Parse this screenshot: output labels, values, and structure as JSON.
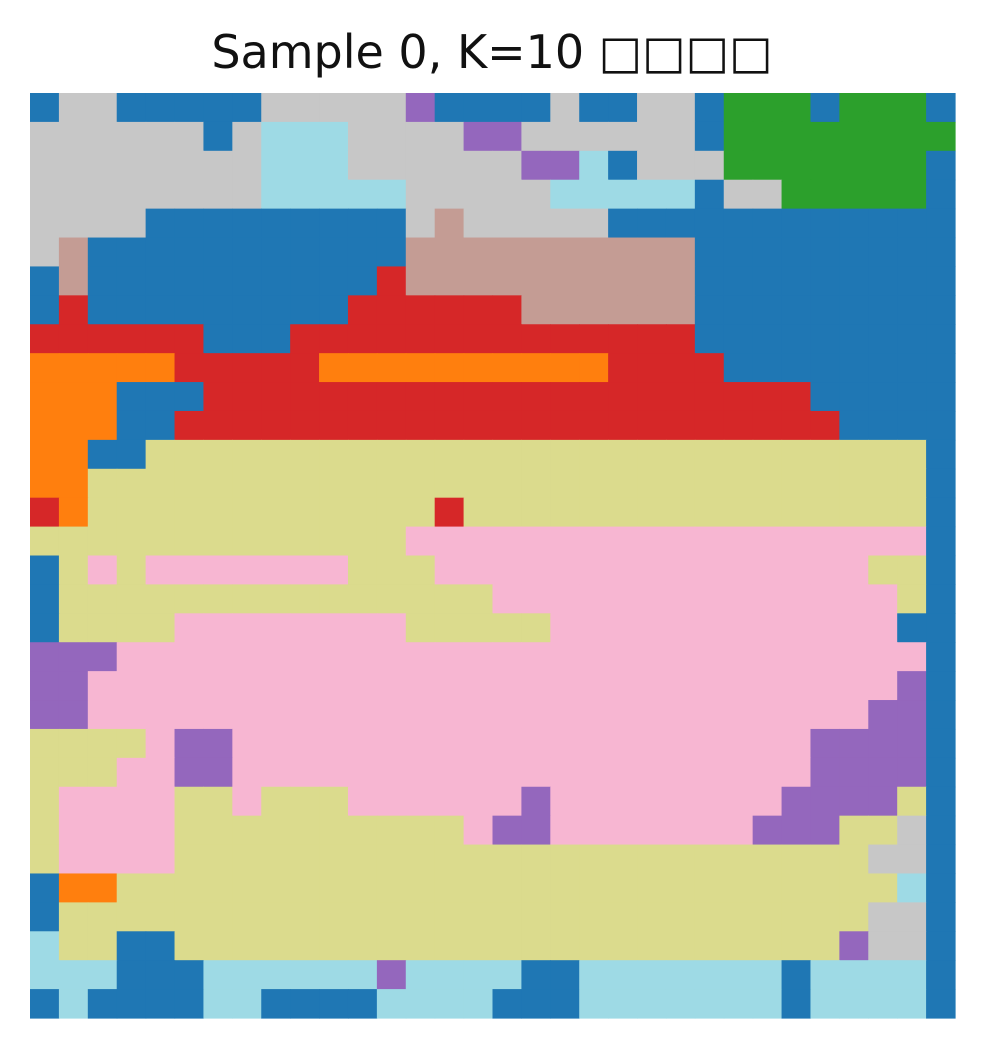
{
  "title": "Sample 0, K=10 □□□□",
  "chart_data": {
    "type": "heatmap",
    "title": "Sample 0, K=10 □□□□",
    "xlabel": "",
    "ylabel": "",
    "axes_visible": false,
    "grid": false,
    "legend": "none",
    "rows": 32,
    "cols": 32,
    "palette": {
      "0": "#1f77b4",
      "1": "#c7c7c7",
      "2": "#9467bd",
      "3": "#9edae5",
      "4": "#2ca02c",
      "5": "#c49c94",
      "6": "#d62728",
      "7": "#ff7f0e",
      "8": "#dbdb8d",
      "9": "#f7b6d2"
    },
    "labels": [
      "01100000111112000010011044404440",
      "11111101333111122111111044444444",
      "11111111333111111223011144444440",
      "11111111333331111133333011444440",
      "11110000000001511111000000000000",
      "15000000000005555555555000000000",
      "05000000000065555555555000000000",
      "06000000000666666555555000000000",
      "66666600066666666666666000000000",
      "77777666667777777777666600000000",
      "77700066666666666666666666600000",
      "77700666666666666666666666660000",
      "77008888888888888888888888888880",
      "77888888888888888888888888888880",
      "67888888888888688888888888888880",
      "88888888888889999999999999999990",
      "08989999999888999999999999999880",
      "08888888888888889999999999999980",
      "08888999999998888899999999999900",
      "22299999999999999999999999999990",
      "22999999999999999999999999999920",
      "22999999999999999999999999999220",
      "88889229999999999999999999922220",
      "88899229999999999999999999922220",
      "89999889888999999299999999222280",
      "89999888888888892299999992228810",
      "89999888888888888888888888888110",
      "07788888888888888888888888888830",
      "08888888888888888888888888888110",
      "38800888888888888888888888882110",
      "33300033333323333003333333033330",
      "03000033000033330003333333033330"
    ]
  }
}
